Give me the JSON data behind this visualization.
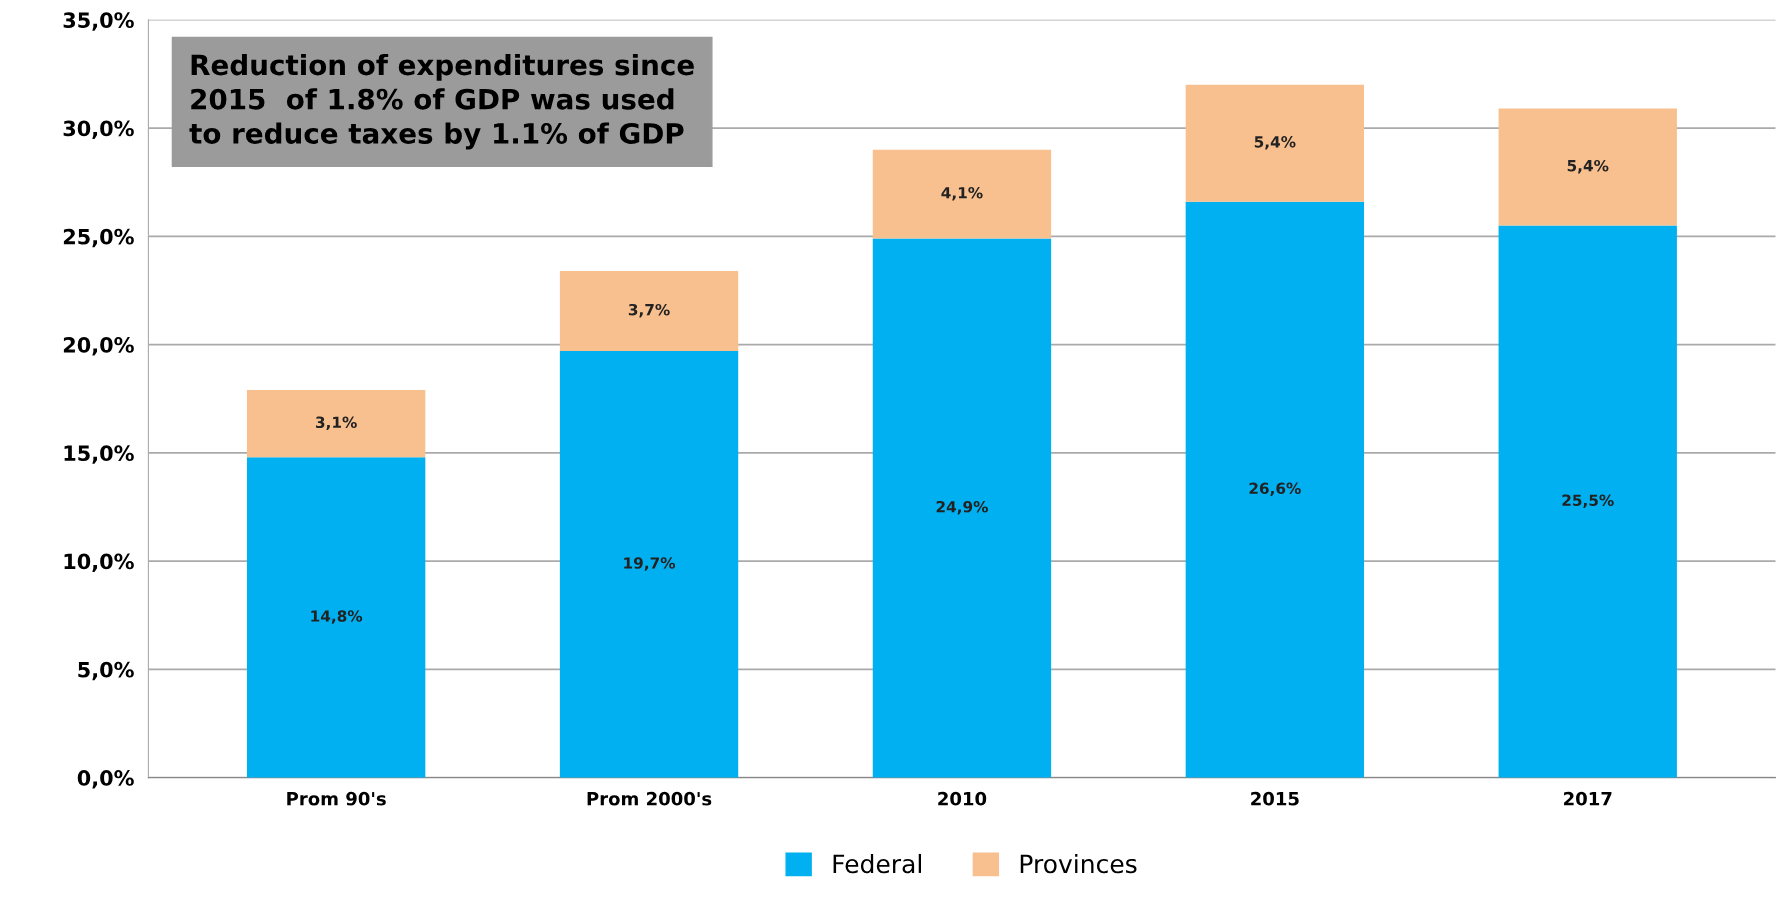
{
  "chart_data": {
    "type": "bar",
    "stacked": true,
    "categories": [
      "Prom 90's",
      "Prom 2000's",
      "2010",
      "2015",
      "2017"
    ],
    "series": [
      {
        "name": "Federal",
        "color": "#00b0f0",
        "values": [
          14.8,
          19.7,
          24.9,
          26.6,
          25.5
        ],
        "value_labels": [
          "14,8%",
          "19,7%",
          "24,9%",
          "26,6%",
          "25,5%"
        ]
      },
      {
        "name": "Provinces",
        "color": "#f9c08f",
        "values": [
          3.1,
          3.7,
          4.1,
          5.4,
          5.4
        ],
        "value_labels": [
          "3,1%",
          "3,7%",
          "4,1%",
          "5,4%",
          "5,4%"
        ]
      }
    ],
    "ylim": [
      0,
      35
    ],
    "yticks": [
      {
        "value": 0,
        "label": "0,0%"
      },
      {
        "value": 5,
        "label": "5,0%"
      },
      {
        "value": 10,
        "label": "10,0%"
      },
      {
        "value": 15,
        "label": "15,0%"
      },
      {
        "value": 20,
        "label": "20,0%"
      },
      {
        "value": 25,
        "label": "25,0%"
      },
      {
        "value": 30,
        "label": "30,0%"
      },
      {
        "value": 35,
        "label": "35,0%"
      }
    ],
    "grid": "y",
    "legend": "bottom",
    "annotations": [
      "Reduction of expenditures since\n2015  of 1.8% of GDP was used\nto reduce taxes by 1.1% of GDP"
    ]
  }
}
